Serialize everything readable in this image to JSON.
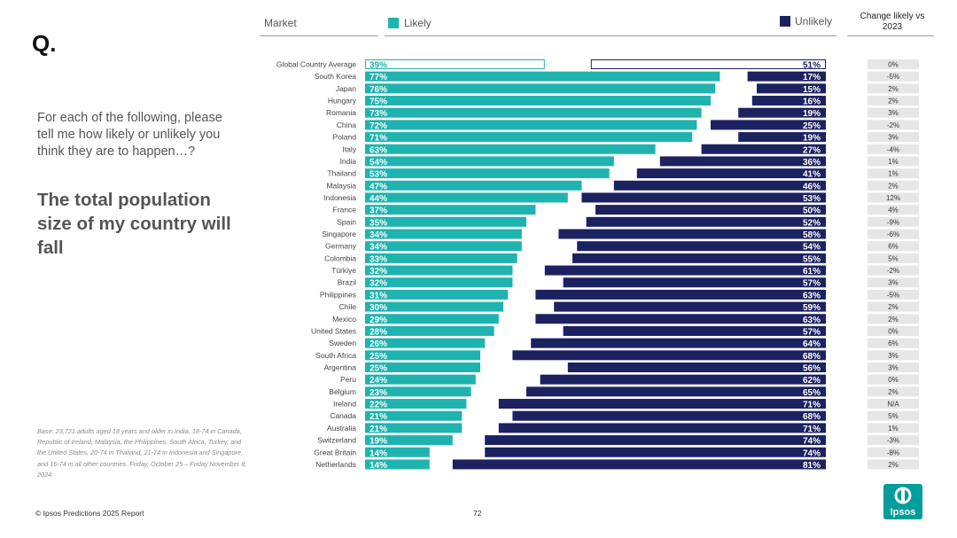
{
  "page": {
    "q_mark": "Q.",
    "question": "For each of the following, please tell me how likely or unlikely you think they are to happen…?",
    "statement": "The total population size of my country will fall",
    "base_note": "Base: 23,721 adults aged 18 years and older in India, 18-74 in Canada, Republic of Ireland, Malaysia, the Philippines, South Africa, Turkey, and the United States, 20-74 in Thailand, 21-74 in Indonesia and Singapore, and 16-74 in all other countries. Friday, October 25 – Friday November 8, 2024",
    "footer_left": "© Ipsos Predictions 2025 Report",
    "page_number": "72",
    "logo_text": "Ipsos"
  },
  "colors": {
    "likely": "#1fb3af",
    "unlikely": "#1c2160",
    "change_bg": "#e6e6e6",
    "brand": "#009d9a"
  },
  "chart_data": {
    "type": "bar",
    "title": "The total population size of my country will fall",
    "headers": {
      "market": "Market",
      "likely": "Likely",
      "unlikely": "Unlikely",
      "change": "Change likely vs 2023"
    },
    "xlim": [
      0,
      100
    ],
    "categories": [
      "Global Country Average",
      "South Korea",
      "Japan",
      "Hungary",
      "Romania",
      "China",
      "Poland",
      "Italy",
      "India",
      "Thailand",
      "Malaysia",
      "Indonesia",
      "France",
      "Spain",
      "Singapore",
      "Germany",
      "Colombia",
      "Türkiye",
      "Brazil",
      "Philippines",
      "Chile",
      "Mexico",
      "United States",
      "Sweden",
      "South Africa",
      "Argentina",
      "Peru",
      "Belgium",
      "Ireland",
      "Canada",
      "Australia",
      "Switzerland",
      "Great Britain",
      "Netherlands"
    ],
    "series": [
      {
        "name": "Likely",
        "values": [
          39,
          77,
          76,
          75,
          73,
          72,
          71,
          63,
          54,
          53,
          47,
          44,
          37,
          35,
          34,
          34,
          33,
          32,
          32,
          31,
          30,
          29,
          28,
          26,
          25,
          25,
          24,
          23,
          22,
          21,
          21,
          19,
          14,
          14
        ]
      },
      {
        "name": "Unlikely",
        "values": [
          51,
          17,
          15,
          16,
          19,
          25,
          19,
          27,
          36,
          41,
          46,
          53,
          50,
          52,
          58,
          54,
          55,
          61,
          57,
          63,
          59,
          63,
          57,
          64,
          68,
          56,
          62,
          65,
          71,
          68,
          71,
          74,
          74,
          81
        ]
      }
    ],
    "change_vs_2023": [
      "0%",
      "-5%",
      "2%",
      "2%",
      "3%",
      "-2%",
      "3%",
      "-4%",
      "1%",
      "1%",
      "2%",
      "12%",
      "4%",
      "-9%",
      "-6%",
      "6%",
      "5%",
      "-2%",
      "3%",
      "-5%",
      "2%",
      "2%",
      "0%",
      "6%",
      "3%",
      "3%",
      "0%",
      "2%",
      "N/A",
      "5%",
      "1%",
      "-3%",
      "-8%",
      "2%"
    ]
  }
}
